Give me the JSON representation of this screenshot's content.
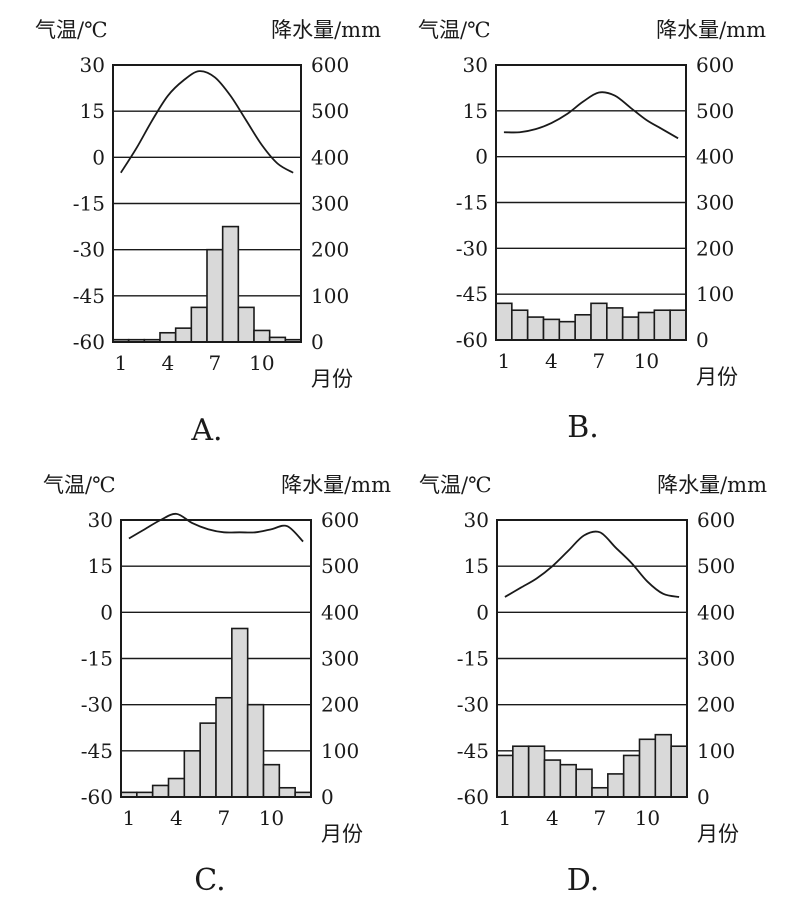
{
  "chart_data": [
    {
      "type": "bar+line",
      "panel_label": "A.",
      "temp_axis_label": "气温/℃",
      "precip_axis_label": "降水量/mm",
      "x_axis_label": "月份",
      "months": [
        1,
        2,
        3,
        4,
        5,
        6,
        7,
        8,
        9,
        10,
        11,
        12
      ],
      "x_tick_labels": [
        "1",
        "4",
        "7",
        "10"
      ],
      "temp_ticks": [
        "30",
        "15",
        "0",
        "-15",
        "-30",
        "-45",
        "-60"
      ],
      "precip_ticks": [
        "600",
        "500",
        "400",
        "300",
        "200",
        "100",
        "0"
      ],
      "temp_range": [
        -60,
        30
      ],
      "precip_range": [
        0,
        600
      ],
      "temperature_c": [
        -5,
        3,
        12,
        20,
        25,
        28,
        26,
        20,
        12,
        4,
        -2,
        -5
      ],
      "precipitation_mm": [
        5,
        5,
        5,
        20,
        30,
        75,
        200,
        250,
        75,
        25,
        10,
        5
      ]
    },
    {
      "type": "bar+line",
      "panel_label": "B.",
      "temp_axis_label": "气温/℃",
      "precip_axis_label": "降水量/mm",
      "x_axis_label": "月份",
      "months": [
        1,
        2,
        3,
        4,
        5,
        6,
        7,
        8,
        9,
        10,
        11,
        12
      ],
      "x_tick_labels": [
        "1",
        "4",
        "7",
        "10"
      ],
      "temp_ticks": [
        "30",
        "15",
        "0",
        "-15",
        "-30",
        "-45",
        "-60"
      ],
      "precip_ticks": [
        "600",
        "500",
        "400",
        "300",
        "200",
        "100",
        "0"
      ],
      "temp_range": [
        -60,
        30
      ],
      "precip_range": [
        0,
        600
      ],
      "temperature_c": [
        8,
        8,
        9,
        11,
        14,
        18,
        21,
        20,
        16,
        12,
        9,
        6
      ],
      "precipitation_mm": [
        80,
        65,
        50,
        45,
        40,
        55,
        80,
        70,
        50,
        60,
        65,
        65
      ]
    },
    {
      "type": "bar+line",
      "panel_label": "C.",
      "temp_axis_label": "气温/℃",
      "precip_axis_label": "降水量/mm",
      "x_axis_label": "月份",
      "months": [
        1,
        2,
        3,
        4,
        5,
        6,
        7,
        8,
        9,
        10,
        11,
        12
      ],
      "x_tick_labels": [
        "1",
        "4",
        "7",
        "10"
      ],
      "temp_ticks": [
        "30",
        "15",
        "0",
        "-15",
        "-30",
        "-45",
        "-60"
      ],
      "precip_ticks": [
        "600",
        "500",
        "400",
        "300",
        "200",
        "100",
        "0"
      ],
      "temp_range": [
        -60,
        30
      ],
      "precip_range": [
        0,
        600
      ],
      "temperature_c": [
        24,
        27,
        30,
        32,
        29,
        27,
        26,
        26,
        26,
        27,
        28,
        23
      ],
      "precipitation_mm": [
        10,
        10,
        25,
        40,
        100,
        160,
        215,
        365,
        200,
        70,
        20,
        10
      ]
    },
    {
      "type": "bar+line",
      "panel_label": "D.",
      "temp_axis_label": "气温/℃",
      "precip_axis_label": "降水量/mm",
      "x_axis_label": "月份",
      "months": [
        1,
        2,
        3,
        4,
        5,
        6,
        7,
        8,
        9,
        10,
        11,
        12
      ],
      "x_tick_labels": [
        "1",
        "4",
        "7",
        "10"
      ],
      "temp_ticks": [
        "30",
        "15",
        "0",
        "-15",
        "-30",
        "-45",
        "-60"
      ],
      "precip_ticks": [
        "600",
        "500",
        "400",
        "300",
        "200",
        "100",
        "0"
      ],
      "temp_range": [
        -60,
        30
      ],
      "precip_range": [
        0,
        600
      ],
      "temperature_c": [
        5,
        8,
        11,
        15,
        20,
        25,
        26,
        21,
        16,
        10,
        6,
        5
      ],
      "precipitation_mm": [
        90,
        110,
        110,
        80,
        70,
        60,
        20,
        50,
        90,
        125,
        135,
        110
      ]
    }
  ]
}
